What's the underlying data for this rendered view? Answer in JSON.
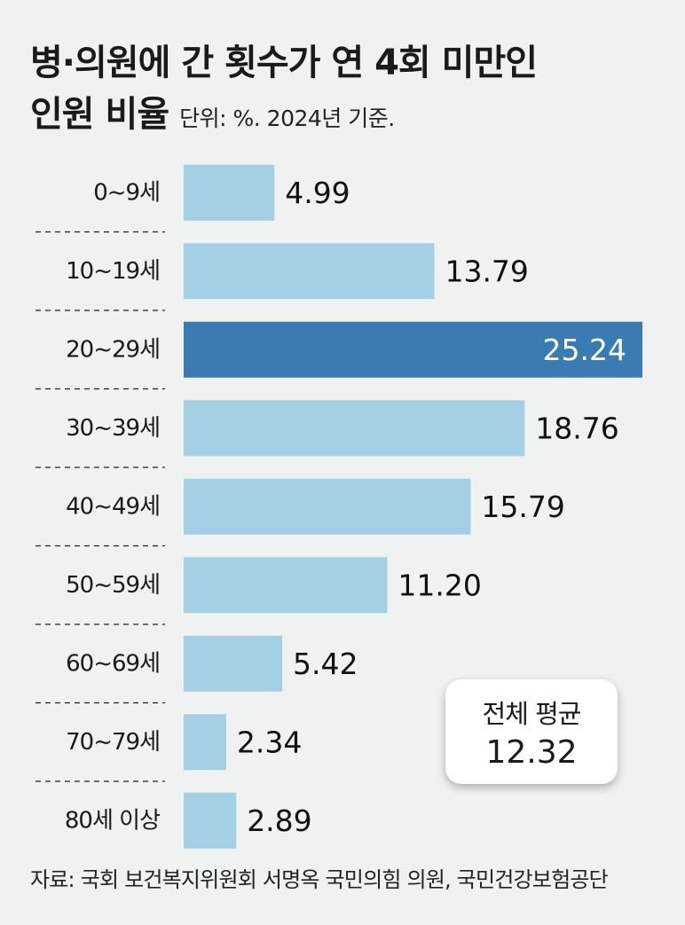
{
  "title": {
    "line1": "병·의원에 간 횟수가 연 4회 미만인",
    "line2": "인원 비율",
    "unit": "단위: %. 2024년 기준."
  },
  "chart_data": {
    "type": "bar",
    "orientation": "horizontal",
    "categories": [
      "0~9세",
      "10~19세",
      "20~29세",
      "30~39세",
      "40~49세",
      "50~59세",
      "60~69세",
      "70~79세",
      "80세 이상"
    ],
    "values": [
      4.99,
      13.79,
      25.24,
      18.76,
      15.79,
      11.2,
      5.42,
      2.34,
      2.89
    ],
    "value_labels": [
      "4.99",
      "13.79",
      "25.24",
      "18.76",
      "15.79",
      "11.20",
      "5.42",
      "2.34",
      "2.89"
    ],
    "highlight_index": 2,
    "colors": {
      "bar": "#a3d0e5",
      "highlight": "#3a7bb1"
    },
    "xlim": [
      0,
      25.24
    ],
    "grid": false,
    "legend": "none"
  },
  "average": {
    "label": "전체 평균",
    "value": "12.32"
  },
  "source": "자료: 국회 보건복지위원회 서명옥 국민의힘 의원, 국민건강보험공단"
}
